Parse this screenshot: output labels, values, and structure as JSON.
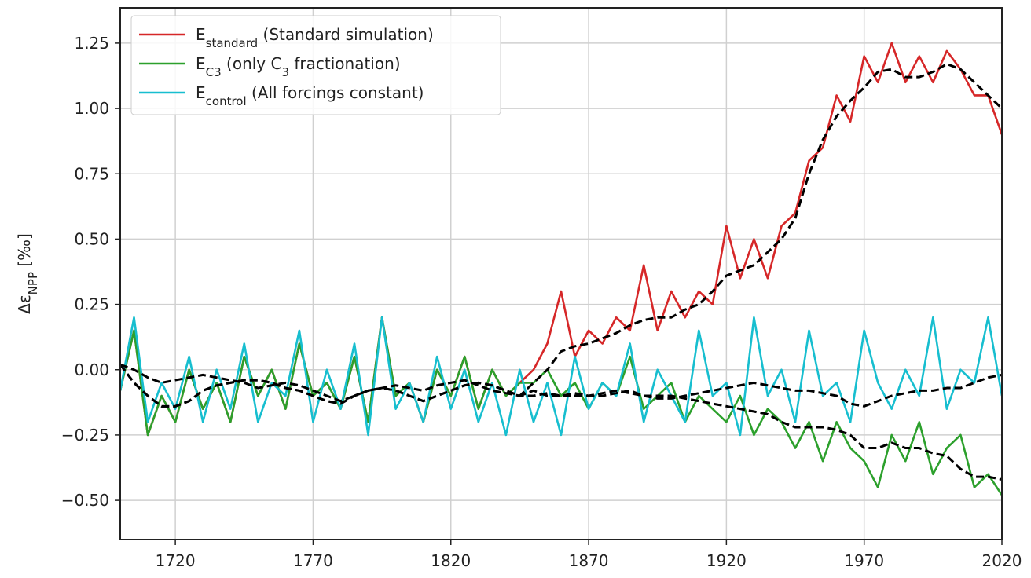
{
  "chart_data": {
    "type": "line",
    "y_label": [
      "Δε",
      {
        "sub": "NPP"
      },
      " [‰]"
    ],
    "x": [
      1700,
      1705,
      1710,
      1715,
      1720,
      1725,
      1730,
      1735,
      1740,
      1745,
      1750,
      1755,
      1760,
      1765,
      1770,
      1775,
      1780,
      1785,
      1790,
      1795,
      1800,
      1805,
      1810,
      1815,
      1820,
      1825,
      1830,
      1835,
      1840,
      1845,
      1850,
      1855,
      1860,
      1865,
      1870,
      1875,
      1880,
      1885,
      1890,
      1895,
      1900,
      1905,
      1910,
      1915,
      1920,
      1925,
      1930,
      1935,
      1940,
      1945,
      1950,
      1955,
      1960,
      1965,
      1970,
      1975,
      1980,
      1985,
      1990,
      1995,
      2000,
      2005,
      2010,
      2015,
      2020
    ],
    "series": [
      {
        "name": [
          "E",
          {
            "sub": "standard"
          },
          " (Standard simulation)"
        ],
        "color": "#d62728",
        "values": [
          -0.08,
          0.15,
          -0.25,
          -0.1,
          -0.2,
          0.0,
          -0.15,
          -0.05,
          -0.2,
          0.05,
          -0.1,
          0.0,
          -0.15,
          0.1,
          -0.1,
          -0.05,
          -0.15,
          0.05,
          -0.2,
          0.2,
          -0.1,
          -0.05,
          -0.2,
          0.0,
          -0.1,
          0.05,
          -0.15,
          0.0,
          -0.1,
          -0.05,
          0.0,
          0.1,
          0.3,
          0.05,
          0.15,
          0.1,
          0.2,
          0.15,
          0.4,
          0.15,
          0.3,
          0.2,
          0.3,
          0.25,
          0.55,
          0.35,
          0.5,
          0.35,
          0.55,
          0.6,
          0.8,
          0.85,
          1.05,
          0.95,
          1.2,
          1.1,
          1.25,
          1.1,
          1.2,
          1.1,
          1.22,
          1.15,
          1.05,
          1.05,
          0.9
        ]
      },
      {
        "name": [
          "E",
          {
            "sub": "C3"
          },
          " (only C",
          {
            "sub": "3"
          },
          " fractionation)"
        ],
        "color": "#2ca02c",
        "values": [
          -0.08,
          0.15,
          -0.25,
          -0.1,
          -0.2,
          0.0,
          -0.15,
          -0.05,
          -0.2,
          0.05,
          -0.1,
          0.0,
          -0.15,
          0.1,
          -0.1,
          -0.05,
          -0.15,
          0.05,
          -0.2,
          0.2,
          -0.1,
          -0.05,
          -0.2,
          0.0,
          -0.1,
          0.05,
          -0.15,
          0.0,
          -0.1,
          -0.05,
          -0.05,
          0.0,
          -0.1,
          -0.05,
          -0.15,
          -0.05,
          -0.1,
          0.05,
          -0.15,
          -0.1,
          -0.05,
          -0.2,
          -0.1,
          -0.15,
          -0.2,
          -0.1,
          -0.25,
          -0.15,
          -0.2,
          -0.3,
          -0.2,
          -0.35,
          -0.2,
          -0.3,
          -0.35,
          -0.45,
          -0.25,
          -0.35,
          -0.2,
          -0.4,
          -0.3,
          -0.25,
          -0.45,
          -0.4,
          -0.48
        ]
      },
      {
        "name": [
          "E",
          {
            "sub": "control"
          },
          " (All forcings constant)"
        ],
        "color": "#17becf",
        "values": [
          -0.08,
          0.2,
          -0.2,
          -0.05,
          -0.15,
          0.05,
          -0.2,
          0.0,
          -0.15,
          0.1,
          -0.2,
          -0.05,
          -0.1,
          0.15,
          -0.2,
          0.0,
          -0.15,
          0.1,
          -0.25,
          0.2,
          -0.15,
          -0.05,
          -0.2,
          0.05,
          -0.15,
          0.0,
          -0.2,
          -0.05,
          -0.25,
          0.0,
          -0.2,
          -0.05,
          -0.25,
          0.05,
          -0.15,
          -0.05,
          -0.1,
          0.1,
          -0.2,
          0.0,
          -0.1,
          -0.2,
          0.15,
          -0.1,
          -0.05,
          -0.25,
          0.2,
          -0.1,
          0.0,
          -0.2,
          0.15,
          -0.1,
          -0.05,
          -0.2,
          0.15,
          -0.05,
          -0.15,
          0.0,
          -0.1,
          0.2,
          -0.15,
          0.0,
          -0.05,
          0.2,
          -0.1
        ]
      },
      {
        "color": "#000000",
        "dashed": true,
        "values": [
          0.02,
          -0.05,
          -0.1,
          -0.14,
          -0.14,
          -0.12,
          -0.08,
          -0.06,
          -0.05,
          -0.04,
          -0.04,
          -0.05,
          -0.07,
          -0.08,
          -0.1,
          -0.12,
          -0.13,
          -0.1,
          -0.08,
          -0.07,
          -0.08,
          -0.1,
          -0.12,
          -0.1,
          -0.08,
          -0.06,
          -0.05,
          -0.06,
          -0.08,
          -0.1,
          -0.05,
          0.0,
          0.07,
          0.09,
          0.1,
          0.12,
          0.14,
          0.17,
          0.19,
          0.2,
          0.2,
          0.23,
          0.25,
          0.3,
          0.36,
          0.38,
          0.4,
          0.45,
          0.5,
          0.58,
          0.75,
          0.88,
          0.97,
          1.03,
          1.08,
          1.14,
          1.15,
          1.12,
          1.12,
          1.14,
          1.17,
          1.15,
          1.1,
          1.05,
          1.0
        ]
      },
      {
        "color": "#000000",
        "dashed": true,
        "values": [
          0.02,
          -0.05,
          -0.1,
          -0.14,
          -0.14,
          -0.12,
          -0.08,
          -0.06,
          -0.05,
          -0.04,
          -0.04,
          -0.05,
          -0.07,
          -0.08,
          -0.1,
          -0.12,
          -0.13,
          -0.1,
          -0.08,
          -0.07,
          -0.08,
          -0.1,
          -0.12,
          -0.1,
          -0.08,
          -0.06,
          -0.05,
          -0.06,
          -0.08,
          -0.1,
          -0.08,
          -0.1,
          -0.1,
          -0.09,
          -0.1,
          -0.1,
          -0.09,
          -0.08,
          -0.1,
          -0.1,
          -0.1,
          -0.11,
          -0.12,
          -0.13,
          -0.14,
          -0.15,
          -0.16,
          -0.17,
          -0.2,
          -0.22,
          -0.22,
          -0.22,
          -0.23,
          -0.25,
          -0.3,
          -0.3,
          -0.28,
          -0.3,
          -0.3,
          -0.32,
          -0.33,
          -0.38,
          -0.41,
          -0.41,
          -0.42
        ]
      },
      {
        "color": "#000000",
        "dashed": true,
        "values": [
          0.02,
          0.0,
          -0.03,
          -0.05,
          -0.04,
          -0.03,
          -0.02,
          -0.03,
          -0.04,
          -0.05,
          -0.07,
          -0.06,
          -0.05,
          -0.06,
          -0.08,
          -0.1,
          -0.12,
          -0.1,
          -0.08,
          -0.07,
          -0.06,
          -0.07,
          -0.08,
          -0.06,
          -0.05,
          -0.04,
          -0.06,
          -0.08,
          -0.09,
          -0.1,
          -0.1,
          -0.09,
          -0.1,
          -0.1,
          -0.1,
          -0.09,
          -0.08,
          -0.09,
          -0.1,
          -0.11,
          -0.11,
          -0.1,
          -0.09,
          -0.08,
          -0.07,
          -0.06,
          -0.05,
          -0.06,
          -0.07,
          -0.08,
          -0.08,
          -0.09,
          -0.1,
          -0.13,
          -0.14,
          -0.12,
          -0.1,
          -0.09,
          -0.08,
          -0.08,
          -0.07,
          -0.07,
          -0.05,
          -0.03,
          -0.02
        ]
      }
    ],
    "xlim": [
      1700,
      2020
    ],
    "xticks": [
      1720,
      1770,
      1820,
      1870,
      1920,
      1970,
      2020
    ],
    "ylim": [
      -0.65,
      1.385
    ],
    "yticks": [
      {
        "value": -0.5,
        "label": "−0.50"
      },
      {
        "value": -0.25,
        "label": "−0.25"
      },
      {
        "value": 0,
        "label": "0.00"
      },
      0.25,
      {
        "value": 0.5,
        "label": "0.50"
      },
      0.75,
      {
        "value": 1,
        "label": "1.00"
      },
      1.25
    ],
    "grid": true,
    "legend": "upper left"
  }
}
